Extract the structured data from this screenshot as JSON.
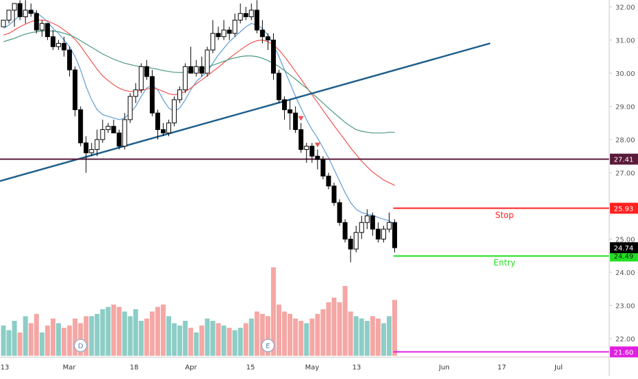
{
  "chart_data": {
    "type": "candlestick",
    "y_axis": {
      "position": "right",
      "tick_labels": [
        "32.00",
        "31.00",
        "30.00",
        "29.00",
        "28.00",
        "27.00",
        "25.00",
        "24.00",
        "23.00",
        "22.00"
      ],
      "tick_values": [
        32,
        31,
        30,
        29,
        28,
        27,
        25,
        24,
        23,
        22
      ],
      "ylim": [
        21.4,
        32.2
      ]
    },
    "x_axis": {
      "tick_labels": [
        "13",
        "Mar",
        "18",
        "Apr",
        "15",
        "May",
        "13",
        "Jun",
        "17",
        "Jul"
      ]
    },
    "candles": [
      [
        31.4,
        31.6,
        31.4,
        31.6
      ],
      [
        31.6,
        31.8,
        31.5,
        31.9
      ],
      [
        31.9,
        32.1,
        31.4,
        32.1
      ],
      [
        32.1,
        32.2,
        31.6,
        31.7
      ],
      [
        31.7,
        32.2,
        31.5,
        31.9
      ],
      [
        31.9,
        32.1,
        31.7,
        31.8
      ],
      [
        31.8,
        31.9,
        31.2,
        31.3
      ],
      [
        31.3,
        31.6,
        31.1,
        31.5
      ],
      [
        31.5,
        31.5,
        31.0,
        31.1
      ],
      [
        31.1,
        31.3,
        30.7,
        30.8
      ],
      [
        30.8,
        31.0,
        30.7,
        30.9
      ],
      [
        30.9,
        31.1,
        30.5,
        30.7
      ],
      [
        30.7,
        30.8,
        29.9,
        30.1
      ],
      [
        30.1,
        30.2,
        28.7,
        28.9
      ],
      [
        28.9,
        29.0,
        27.8,
        27.9
      ],
      [
        27.9,
        28.1,
        27.0,
        27.6
      ],
      [
        27.6,
        27.9,
        27.5,
        27.7
      ],
      [
        27.7,
        28.3,
        27.5,
        28.0
      ],
      [
        28.0,
        28.6,
        27.9,
        28.3
      ],
      [
        28.3,
        28.5,
        28.2,
        28.4
      ],
      [
        28.4,
        28.6,
        28.3,
        28.2
      ],
      [
        28.2,
        28.3,
        27.7,
        27.8
      ],
      [
        27.8,
        28.8,
        27.7,
        28.6
      ],
      [
        28.6,
        29.4,
        28.5,
        29.3
      ],
      [
        29.3,
        29.7,
        29.1,
        29.5
      ],
      [
        29.5,
        30.3,
        29.4,
        30.2
      ],
      [
        30.2,
        30.4,
        29.8,
        29.9
      ],
      [
        29.9,
        30.1,
        28.7,
        28.8
      ],
      [
        28.8,
        28.9,
        28.0,
        28.3
      ],
      [
        28.3,
        28.5,
        28.1,
        28.2
      ],
      [
        28.2,
        28.6,
        28.1,
        28.5
      ],
      [
        28.5,
        29.3,
        28.4,
        29.2
      ],
      [
        29.2,
        29.6,
        29.1,
        29.5
      ],
      [
        29.5,
        30.3,
        29.4,
        30.2
      ],
      [
        30.2,
        30.8,
        30.1,
        30.0
      ],
      [
        30.0,
        30.4,
        29.9,
        30.2
      ],
      [
        30.2,
        30.5,
        29.9,
        30.0
      ],
      [
        30.0,
        30.8,
        29.9,
        30.7
      ],
      [
        30.7,
        31.6,
        30.6,
        31.2
      ],
      [
        31.2,
        31.4,
        31.0,
        31.1
      ],
      [
        31.1,
        31.6,
        31.0,
        31.3
      ],
      [
        31.3,
        31.4,
        31.0,
        31.2
      ],
      [
        31.2,
        31.8,
        31.1,
        31.6
      ],
      [
        31.6,
        32.1,
        31.5,
        31.8
      ],
      [
        31.8,
        32.0,
        31.6,
        31.7
      ],
      [
        31.7,
        32.1,
        31.6,
        31.9
      ],
      [
        31.9,
        32.2,
        31.2,
        31.3
      ],
      [
        31.3,
        31.6,
        30.9,
        31.1
      ],
      [
        31.1,
        31.2,
        30.7,
        31.0
      ],
      [
        31.0,
        31.2,
        29.8,
        30.0
      ],
      [
        30.0,
        30.1,
        29.1,
        29.2
      ],
      [
        29.2,
        29.3,
        28.6,
        28.9
      ],
      [
        28.9,
        29.2,
        28.3,
        28.8
      ],
      [
        28.8,
        29.0,
        28.2,
        28.3
      ],
      [
        28.3,
        28.5,
        27.6,
        27.7
      ],
      [
        27.7,
        27.9,
        27.3,
        27.8
      ],
      [
        27.8,
        27.9,
        27.3,
        27.5
      ],
      [
        27.5,
        27.7,
        27.1,
        27.4
      ],
      [
        27.4,
        27.5,
        26.8,
        26.9
      ],
      [
        26.9,
        27.0,
        26.5,
        26.6
      ],
      [
        26.6,
        26.7,
        26.0,
        26.1
      ],
      [
        26.1,
        26.2,
        25.4,
        25.5
      ],
      [
        25.5,
        25.6,
        24.9,
        25.0
      ],
      [
        25.0,
        25.1,
        24.3,
        24.7
      ],
      [
        24.7,
        25.4,
        24.6,
        25.2
      ],
      [
        25.2,
        25.7,
        25.0,
        25.5
      ],
      [
        25.5,
        25.9,
        25.3,
        25.7
      ],
      [
        25.7,
        25.8,
        25.1,
        25.3
      ],
      [
        25.3,
        25.5,
        24.9,
        25.0
      ],
      [
        25.0,
        25.4,
        24.9,
        25.3
      ],
      [
        25.3,
        25.8,
        25.2,
        25.5
      ],
      [
        25.5,
        25.6,
        24.6,
        24.74
      ]
    ],
    "volume": [
      2.6,
      2.2,
      3.0,
      2.0,
      3.4,
      2.8,
      3.6,
      2.0,
      2.6,
      3.2,
      2.8,
      2.4,
      2.6,
      3.2,
      2.8,
      3.4,
      3.4,
      3.6,
      4.0,
      4.2,
      4.4,
      4.2,
      3.8,
      3.4,
      4.0,
      3.0,
      3.2,
      3.8,
      4.2,
      4.4,
      3.4,
      2.8,
      2.6,
      3.0,
      2.4,
      2.0,
      2.6,
      3.2,
      3.0,
      2.8,
      2.6,
      2.4,
      2.2,
      2.4,
      2.8,
      3.2,
      3.8,
      3.6,
      3.4,
      7.6,
      4.4,
      3.8,
      3.6,
      3.2,
      3.0,
      2.8,
      3.2,
      3.6,
      4.0,
      4.6,
      5.0,
      4.6,
      6.0,
      3.8,
      3.4,
      3.2,
      3.0,
      3.4,
      3.2,
      2.8,
      3.4,
      4.8
    ],
    "moving_averages": [
      {
        "color": "#5b9bd5",
        "values": [
          31.35,
          31.45,
          31.6,
          31.75,
          31.82,
          31.85,
          31.82,
          31.7,
          31.55,
          31.35,
          31.2,
          31.0,
          30.8,
          30.5,
          30.1,
          29.6,
          29.2,
          28.9,
          28.75,
          28.7,
          28.65,
          28.6,
          28.65,
          28.8,
          29.0,
          29.3,
          29.55,
          29.65,
          29.5,
          29.2,
          28.95,
          28.85,
          28.95,
          29.2,
          29.5,
          29.75,
          29.9,
          30.05,
          30.3,
          30.55,
          30.75,
          30.95,
          31.1,
          31.25,
          31.4,
          31.5,
          31.45,
          31.35,
          31.15,
          30.85,
          30.5,
          30.1,
          29.7,
          29.3,
          28.95,
          28.6,
          28.3,
          28.05,
          27.75,
          27.45,
          27.1,
          26.75,
          26.4,
          26.1,
          25.9,
          25.8,
          25.75,
          25.72,
          25.65,
          25.6,
          25.55,
          25.45
        ]
      },
      {
        "color": "#ef5350",
        "values": [
          31.15,
          31.2,
          31.3,
          31.4,
          31.48,
          31.55,
          31.6,
          31.6,
          31.58,
          31.5,
          31.42,
          31.3,
          31.18,
          31.02,
          30.82,
          30.58,
          30.35,
          30.12,
          29.92,
          29.78,
          29.65,
          29.55,
          29.48,
          29.45,
          29.45,
          29.48,
          29.52,
          29.55,
          29.52,
          29.45,
          29.38,
          29.35,
          29.38,
          29.45,
          29.55,
          29.68,
          29.8,
          29.92,
          30.05,
          30.18,
          30.32,
          30.45,
          30.58,
          30.7,
          30.82,
          30.92,
          30.98,
          31.0,
          30.95,
          30.85,
          30.7,
          30.5,
          30.28,
          30.05,
          29.82,
          29.58,
          29.35,
          29.12,
          28.88,
          28.65,
          28.42,
          28.2,
          27.98,
          27.75,
          27.55,
          27.35,
          27.18,
          27.02,
          26.9,
          26.78,
          26.7,
          26.62
        ]
      },
      {
        "color": "#4c9a7a",
        "values": [
          30.95,
          31.0,
          31.05,
          31.12,
          31.18,
          31.22,
          31.25,
          31.27,
          31.28,
          31.27,
          31.25,
          31.2,
          31.15,
          31.08,
          30.98,
          30.88,
          30.78,
          30.68,
          30.58,
          30.5,
          30.42,
          30.36,
          30.3,
          30.26,
          30.22,
          30.2,
          30.18,
          30.15,
          30.12,
          30.08,
          30.05,
          30.03,
          30.02,
          30.03,
          30.05,
          30.08,
          30.12,
          30.18,
          30.24,
          30.3,
          30.36,
          30.42,
          30.46,
          30.5,
          30.52,
          30.52,
          30.5,
          30.45,
          30.38,
          30.3,
          30.2,
          30.08,
          29.95,
          29.82,
          29.68,
          29.55,
          29.4,
          29.25,
          29.1,
          28.95,
          28.8,
          28.66,
          28.52,
          28.4,
          28.3,
          28.25,
          28.22,
          28.2,
          28.2,
          28.2,
          28.22,
          28.22
        ]
      }
    ],
    "trendline": {
      "color": "#1f5f8b",
      "start_price": 26.75,
      "end_price": 30.9
    },
    "levels": [
      {
        "price": 27.41,
        "label": "",
        "tag": "27.41",
        "color": "#5a1a3a"
      },
      {
        "price": 25.93,
        "label": "Stop",
        "tag": "25.93",
        "color": "#ff2020"
      },
      {
        "price": 24.49,
        "label": "Entry",
        "tag": "24.49",
        "color": "#21e021"
      },
      {
        "price": 21.6,
        "label": "",
        "tag": "21.60",
        "color": "#e020e0"
      }
    ],
    "last_price": {
      "tag": "24.74",
      "value": 24.74
    },
    "markers": [
      {
        "type": "triangle-down",
        "color": "#ef5350",
        "bar_index": 54
      },
      {
        "type": "triangle-down",
        "color": "#ef5350",
        "bar_index": 57
      }
    ],
    "events": [
      {
        "label": "D",
        "bar_index": 14
      },
      {
        "label": "E",
        "bar_index": 48
      }
    ],
    "colors": {
      "up_volume": "#8ccdc6",
      "down_volume": "#f4a7a4",
      "axis_line": "#c7c7c7"
    }
  }
}
